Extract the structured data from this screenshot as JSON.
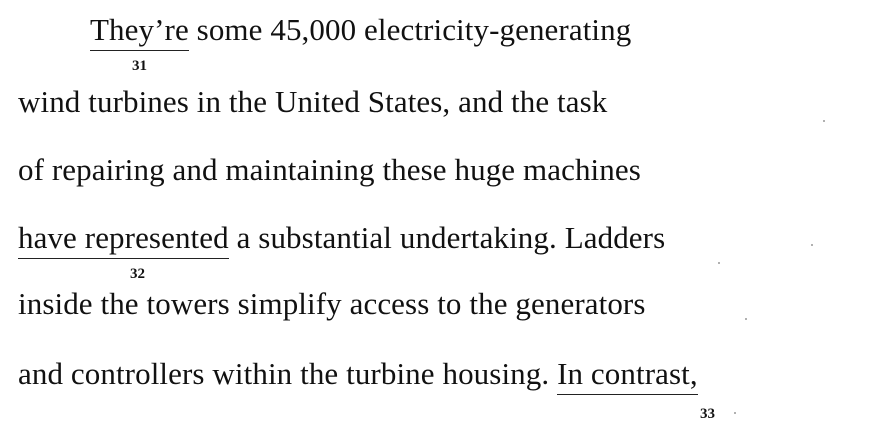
{
  "passage": {
    "line1": {
      "underlined": "They’re",
      "rest": " some 45,000 electricity-generating"
    },
    "line2": "wind turbines in the United States, and the task",
    "line3": "of repairing and maintaining these huge machines",
    "line4": {
      "underlined": "have represented",
      "rest": " a substantial undertaking. Ladders"
    },
    "line5": "inside the towers simplify access to the generators",
    "line6": {
      "before": "and controllers within the turbine housing. ",
      "underlined": "In contrast,"
    }
  },
  "question_numbers": {
    "q31": "31",
    "q32": "32",
    "q33": "33"
  }
}
